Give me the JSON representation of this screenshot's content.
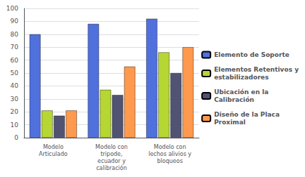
{
  "chart_data": {
    "type": "bar",
    "categories": [
      "Modelo\nArticulado",
      "Modelo con\ntripode,\necuador y\ncalibración",
      "Modelo con\nlechos alivios y\nbloqueos"
    ],
    "series": [
      {
        "name": "Elemento de Soporte",
        "values": [
          80,
          88,
          92
        ]
      },
      {
        "name": "Elementos Retentivos y\nestabilizadores",
        "values": [
          21,
          37,
          66
        ]
      },
      {
        "name": "Ubicación en la\nCalibración",
        "values": [
          17,
          33,
          50
        ]
      },
      {
        "name": "Diseño de la Placa\nProximal",
        "values": [
          21,
          55,
          70
        ]
      }
    ],
    "ylim": [
      0,
      100
    ],
    "yticks": [
      0,
      10,
      20,
      30,
      40,
      50,
      60,
      70,
      80,
      90,
      100
    ],
    "grid": true,
    "legend": "right"
  }
}
